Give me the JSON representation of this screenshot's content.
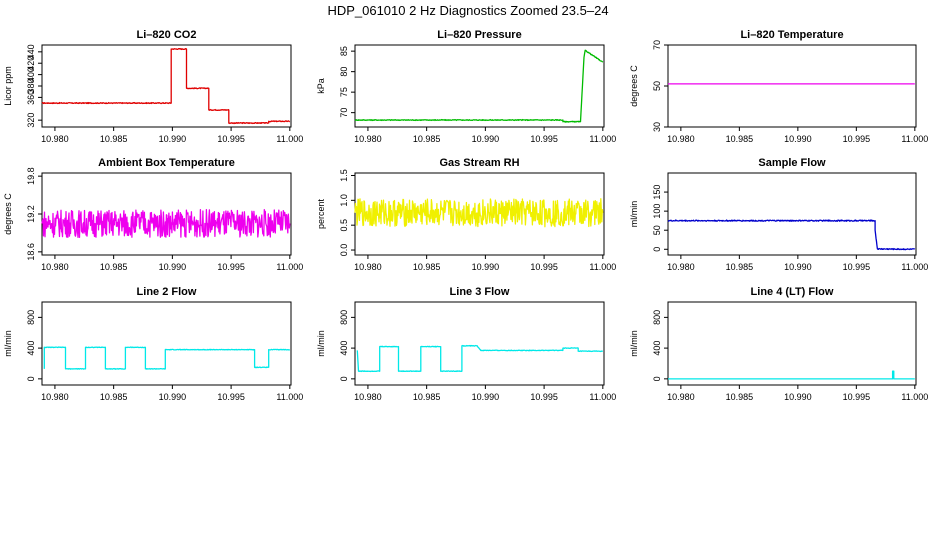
{
  "page": {
    "title": "HDP_061010  2 Hz Diagnostics Zoomed 23.5–24"
  },
  "chart_data": [
    {
      "type": "line",
      "title": "Li–820 CO2",
      "xlabel": "",
      "ylabel": "Licor ppm",
      "xlim": [
        10.9789,
        11.0001
      ],
      "ylim": [
        308,
        452
      ],
      "xticks": [
        10.98,
        10.985,
        10.99,
        10.995,
        11.0
      ],
      "xtick_labels": [
        "10.980",
        "10.985",
        "10.990",
        "10.995",
        "11.000"
      ],
      "yticks": [
        320,
        360,
        380,
        400,
        420,
        440
      ],
      "ytick_labels": [
        "320",
        "360",
        "380",
        "400",
        "420",
        "440"
      ],
      "series": [
        {
          "color": "#e00000",
          "noise": 0.8,
          "x": [
            10.9789,
            10.9899,
            10.9899,
            10.9912,
            10.9912,
            10.9931,
            10.9931,
            10.9948,
            10.9948,
            10.9982,
            10.9982,
            11.0
          ],
          "values": [
            350,
            350,
            445,
            445,
            376,
            376,
            338,
            338,
            315,
            315,
            318,
            318
          ]
        }
      ]
    },
    {
      "type": "line",
      "title": "Li–820 Pressure",
      "xlabel": "",
      "ylabel": "kPa",
      "xlim": [
        10.9789,
        11.0001
      ],
      "ylim": [
        66.5,
        86.5
      ],
      "xticks": [
        10.98,
        10.985,
        10.99,
        10.995,
        11.0
      ],
      "xtick_labels": [
        "10.980",
        "10.985",
        "10.990",
        "10.995",
        "11.000"
      ],
      "yticks": [
        70,
        75,
        80,
        85
      ],
      "ytick_labels": [
        "70",
        "75",
        "80",
        "85"
      ],
      "series": [
        {
          "color": "#00bb00",
          "noise": 0.1,
          "x": [
            10.9789,
            10.9966,
            10.9966,
            10.9981,
            10.9984,
            10.9985,
            11.0
          ],
          "values": [
            68.2,
            68.2,
            67.8,
            67.8,
            83.5,
            85.2,
            82.3
          ]
        }
      ]
    },
    {
      "type": "line",
      "title": "Li–820 Temperature",
      "xlabel": "",
      "ylabel": "degrees C",
      "xlim": [
        10.9789,
        11.0001
      ],
      "ylim": [
        30,
        70
      ],
      "xticks": [
        10.98,
        10.985,
        10.99,
        10.995,
        11.0
      ],
      "xtick_labels": [
        "10.980",
        "10.985",
        "10.990",
        "10.995",
        "11.000"
      ],
      "yticks": [
        30,
        50,
        70
      ],
      "ytick_labels": [
        "30",
        "50",
        "70"
      ],
      "series": [
        {
          "color": "#ee00ee",
          "noise": 0,
          "x": [
            10.9789,
            11.0
          ],
          "values": [
            51,
            51
          ]
        }
      ]
    },
    {
      "type": "line",
      "title": "Ambient Box Temperature",
      "xlabel": "",
      "ylabel": "degrees C",
      "xlim": [
        10.9789,
        11.0001
      ],
      "ylim": [
        18.55,
        19.85
      ],
      "xticks": [
        10.98,
        10.985,
        10.99,
        10.995,
        11.0
      ],
      "xtick_labels": [
        "10.980",
        "10.985",
        "10.990",
        "10.995",
        "11.000"
      ],
      "yticks": [
        18.6,
        19.2,
        19.8
      ],
      "ytick_labels": [
        "18.6",
        "19.2",
        "19.8"
      ],
      "series": [
        {
          "color": "#ee00ee",
          "noise": 0.22,
          "x": [
            10.9789,
            11.0
          ],
          "values": [
            19.05,
            19.05
          ]
        }
      ]
    },
    {
      "type": "line",
      "title": "Gas Stream RH",
      "xlabel": "",
      "ylabel": "percent",
      "xlim": [
        10.9789,
        11.0001
      ],
      "ylim": [
        -0.1,
        1.55
      ],
      "xticks": [
        10.98,
        10.985,
        10.99,
        10.995,
        11.0
      ],
      "xtick_labels": [
        "10.980",
        "10.985",
        "10.990",
        "10.995",
        "11.000"
      ],
      "yticks": [
        0.0,
        0.5,
        1.0,
        1.5
      ],
      "ytick_labels": [
        "0.0",
        "0.5",
        "1.0",
        "1.5"
      ],
      "series": [
        {
          "color": "#f0f000",
          "noise": 0.28,
          "x": [
            10.9789,
            11.0
          ],
          "values": [
            0.75,
            0.75
          ]
        }
      ]
    },
    {
      "type": "line",
      "title": "Sample Flow",
      "xlabel": "",
      "ylabel": "ml/min",
      "xlim": [
        10.9789,
        11.0001
      ],
      "ylim": [
        -15,
        200
      ],
      "xticks": [
        10.98,
        10.985,
        10.99,
        10.995,
        11.0
      ],
      "xtick_labels": [
        "10.980",
        "10.985",
        "10.990",
        "10.995",
        "11.000"
      ],
      "yticks": [
        0,
        50,
        100,
        150
      ],
      "ytick_labels": [
        "0",
        "50",
        "100",
        "150"
      ],
      "series": [
        {
          "color": "#0000cc",
          "noise": 1.5,
          "x": [
            10.9789,
            10.9966,
            10.9966,
            10.9968,
            11.0
          ],
          "values": [
            75,
            75,
            50,
            1,
            0
          ]
        }
      ]
    },
    {
      "type": "line",
      "title": "Line 2 Flow",
      "xlabel": "",
      "ylabel": "ml/min",
      "xlim": [
        10.9789,
        11.0001
      ],
      "ylim": [
        -80,
        1000
      ],
      "xticks": [
        10.98,
        10.985,
        10.99,
        10.995,
        11.0
      ],
      "xtick_labels": [
        "10.980",
        "10.985",
        "10.990",
        "10.995",
        "11.000"
      ],
      "yticks": [
        0,
        400,
        800
      ],
      "ytick_labels": [
        "0",
        "400",
        "800"
      ],
      "series": [
        {
          "color": "#00e8e8",
          "noise": 4,
          "x": [
            10.9791,
            10.9791,
            10.9809,
            10.9809,
            10.9826,
            10.9826,
            10.9843,
            10.9843,
            10.986,
            10.986,
            10.9877,
            10.9877,
            10.9894,
            10.9894,
            10.997,
            10.997,
            10.9982,
            10.9982,
            11.0
          ],
          "values": [
            130,
            410,
            410,
            130,
            130,
            410,
            410,
            130,
            130,
            410,
            410,
            130,
            130,
            380,
            380,
            150,
            150,
            380,
            380
          ]
        }
      ]
    },
    {
      "type": "line",
      "title": "Line 3 Flow",
      "xlabel": "",
      "ylabel": "ml/min",
      "xlim": [
        10.9789,
        11.0001
      ],
      "ylim": [
        -80,
        1000
      ],
      "xticks": [
        10.98,
        10.985,
        10.99,
        10.995,
        11.0
      ],
      "xtick_labels": [
        "10.980",
        "10.985",
        "10.990",
        "10.995",
        "11.000"
      ],
      "yticks": [
        0,
        400,
        800
      ],
      "ytick_labels": [
        "0",
        "400",
        "800"
      ],
      "series": [
        {
          "color": "#00e8e8",
          "noise": 4,
          "x": [
            10.9791,
            10.9791,
            10.9792,
            10.9792,
            10.981,
            10.981,
            10.9826,
            10.9826,
            10.9845,
            10.9845,
            10.9862,
            10.9862,
            10.988,
            10.988,
            10.9893,
            10.9896,
            10.9966,
            10.9966,
            10.9979,
            10.9979,
            11.0
          ],
          "values": [
            370,
            370,
            100,
            100,
            100,
            420,
            420,
            100,
            100,
            420,
            420,
            100,
            100,
            430,
            430,
            370,
            370,
            400,
            400,
            360,
            360
          ]
        }
      ]
    },
    {
      "type": "line",
      "title": "Line 4 (LT) Flow",
      "xlabel": "",
      "ylabel": "ml/min",
      "xlim": [
        10.9789,
        11.0001
      ],
      "ylim": [
        -80,
        1000
      ],
      "xticks": [
        10.98,
        10.985,
        10.99,
        10.995,
        11.0
      ],
      "xtick_labels": [
        "10.980",
        "10.985",
        "10.990",
        "10.995",
        "11.000"
      ],
      "yticks": [
        0,
        400,
        800
      ],
      "ytick_labels": [
        "0",
        "400",
        "800"
      ],
      "series": [
        {
          "color": "#00e8e8",
          "noise": 0,
          "x": [
            10.9789,
            10.9981,
            10.9981,
            10.9982,
            10.9982,
            11.0
          ],
          "values": [
            0,
            0,
            100,
            100,
            0,
            0
          ]
        }
      ]
    }
  ]
}
